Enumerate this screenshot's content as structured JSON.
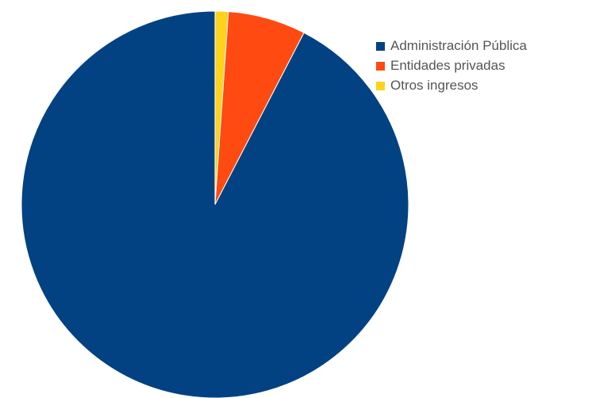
{
  "chart_data": {
    "type": "pie",
    "title": "",
    "legend_position": "right",
    "series": [
      {
        "name": "Administración Pública",
        "value": 92.4,
        "color": "#024282"
      },
      {
        "name": "Entidades privadas",
        "value": 6.5,
        "color": "#ff4a12"
      },
      {
        "name": "Otros ingresos",
        "value": 1.1,
        "color": "#ffd21e"
      }
    ]
  }
}
